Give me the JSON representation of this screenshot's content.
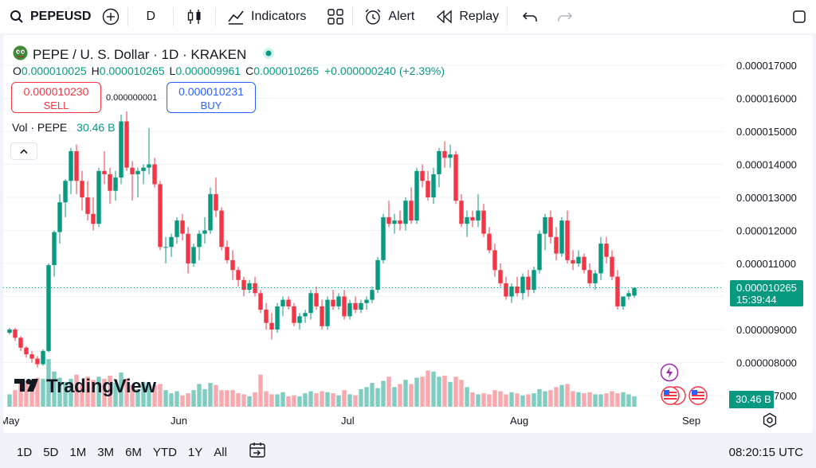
{
  "toolbar": {
    "symbol": "PEPEUSD",
    "interval": "D",
    "indicators_label": "Indicators",
    "alert_label": "Alert",
    "replay_label": "Replay"
  },
  "legend": {
    "title": "PEPE / U. S. Dollar · 1D · KRAKEN",
    "open_key": "O",
    "open": "0.000010025",
    "high_key": "H",
    "high": "0.000010265",
    "low_key": "L",
    "low": "0.000009961",
    "close_key": "C",
    "close": "0.000010265",
    "change": "+0.000000240 (+2.39%)",
    "status_color": "#089981"
  },
  "trade": {
    "sell_price": "0.000010230",
    "sell_label": "SELL",
    "spread": "0.000000001",
    "buy_price": "0.000010231",
    "buy_label": "BUY"
  },
  "volume_legend": {
    "label": "Vol · PEPE",
    "value": "30.46 B"
  },
  "price_axis": {
    "labels": [
      "0.000017000",
      "0.000016000",
      "0.000015000",
      "0.000014000",
      "0.000013000",
      "0.000012000",
      "0.000011000",
      "0.000009000",
      "0.000008000",
      "0.000007000"
    ],
    "last_price": "0.000010265",
    "countdown": "15:39:44",
    "volume_value": "30.46 B"
  },
  "time_axis": {
    "labels": [
      "May",
      "Jun",
      "Jul",
      "Aug",
      "Sep"
    ]
  },
  "branding": {
    "logo_text": "TradingView"
  },
  "bottom_bar": {
    "ranges": [
      "1D",
      "5D",
      "1M",
      "3M",
      "6M",
      "YTD",
      "1Y",
      "All"
    ],
    "clock": "08:20:15 UTC"
  },
  "colors": {
    "up": "#089981",
    "down": "#f23645",
    "up_volume": "#7fccc0",
    "down_volume": "#f7a9ae",
    "accent": "#2962ff"
  },
  "chart_data": {
    "type": "candlestick",
    "timeframe": "1D",
    "ylim": [
      6.6e-06,
      1.77e-05
    ],
    "x_ticks": [
      "May",
      "Jun",
      "Jul",
      "Aug",
      "Sep"
    ],
    "last_close": 1.0265e-05,
    "candles_ohlcv": [
      [
        8.9,
        9.05,
        8.85,
        9.0,
        1.2
      ],
      [
        9.0,
        9.05,
        8.65,
        8.75,
        1.6
      ],
      [
        8.75,
        8.8,
        8.35,
        8.45,
        2.4
      ],
      [
        8.45,
        8.5,
        8.15,
        8.25,
        2.5
      ],
      [
        8.25,
        8.35,
        8.0,
        8.12,
        2.2
      ],
      [
        8.12,
        8.2,
        7.85,
        7.95,
        2.8
      ],
      [
        7.95,
        8.4,
        7.9,
        8.35,
        2.7
      ],
      [
        8.35,
        11.0,
        8.3,
        10.95,
        4.6
      ],
      [
        10.95,
        12.0,
        10.6,
        11.95,
        3.4
      ],
      [
        11.95,
        13.1,
        11.6,
        12.85,
        2.8
      ],
      [
        12.85,
        13.55,
        12.4,
        13.5,
        2.4
      ],
      [
        13.5,
        14.5,
        13.1,
        14.4,
        2.7
      ],
      [
        14.4,
        14.6,
        13.1,
        13.5,
        3.1
      ],
      [
        13.5,
        13.8,
        12.6,
        13.0,
        2.3
      ],
      [
        13.0,
        13.5,
        12.3,
        12.5,
        2.9
      ],
      [
        12.5,
        13.0,
        12.0,
        12.2,
        2.6
      ],
      [
        12.2,
        13.9,
        12.1,
        13.8,
        2.9
      ],
      [
        13.8,
        14.4,
        13.4,
        13.7,
        2.7
      ],
      [
        13.7,
        13.9,
        12.8,
        13.2,
        3.0
      ],
      [
        13.2,
        13.8,
        12.9,
        13.6,
        2.3
      ],
      [
        13.6,
        15.5,
        13.4,
        15.3,
        3.3
      ],
      [
        15.3,
        15.6,
        13.8,
        13.9,
        2.7
      ],
      [
        13.9,
        14.1,
        12.9,
        13.7,
        2.1
      ],
      [
        13.7,
        13.9,
        13.0,
        13.8,
        1.7
      ],
      [
        13.8,
        14.0,
        13.4,
        13.9,
        2.4
      ],
      [
        13.9,
        15.1,
        13.7,
        14.0,
        2.1
      ],
      [
        14.0,
        14.2,
        13.3,
        13.4,
        2.1
      ],
      [
        13.4,
        13.5,
        11.4,
        11.5,
        2.2
      ],
      [
        11.5,
        11.8,
        11.0,
        11.5,
        1.6
      ],
      [
        11.5,
        11.9,
        11.2,
        11.8,
        1.3
      ],
      [
        11.8,
        12.4,
        11.6,
        12.3,
        1.5
      ],
      [
        12.3,
        12.5,
        11.7,
        11.9,
        1.1
      ],
      [
        11.9,
        12.1,
        10.7,
        11.0,
        1.3
      ],
      [
        11.0,
        11.6,
        10.9,
        11.5,
        1.6
      ],
      [
        11.5,
        12.0,
        11.1,
        11.9,
        2.2
      ],
      [
        11.9,
        12.4,
        11.6,
        12.0,
        1.7
      ],
      [
        12.0,
        13.3,
        11.9,
        13.1,
        2.3
      ],
      [
        13.1,
        13.6,
        12.4,
        12.6,
        2.1
      ],
      [
        12.6,
        12.7,
        11.4,
        11.5,
        1.6
      ],
      [
        11.5,
        11.7,
        11.0,
        11.1,
        1.6
      ],
      [
        11.1,
        11.4,
        10.5,
        10.8,
        1.6
      ],
      [
        10.8,
        10.9,
        10.3,
        10.5,
        1.3
      ],
      [
        10.5,
        10.6,
        10.0,
        10.2,
        1.2
      ],
      [
        10.2,
        10.5,
        10.1,
        10.4,
        1.0
      ],
      [
        10.4,
        10.6,
        10.0,
        10.1,
        1.4
      ],
      [
        10.1,
        10.2,
        9.5,
        9.6,
        3.1
      ],
      [
        9.6,
        9.8,
        9.0,
        9.2,
        1.5
      ],
      [
        9.2,
        9.5,
        8.7,
        9.0,
        1.2
      ],
      [
        9.0,
        9.8,
        8.9,
        9.7,
        1.2
      ],
      [
        9.7,
        10.0,
        9.4,
        9.9,
        1.4
      ],
      [
        9.9,
        10.0,
        9.6,
        9.7,
        1.0
      ],
      [
        9.7,
        9.8,
        9.1,
        9.2,
        1.1
      ],
      [
        9.2,
        9.5,
        9.0,
        9.4,
        1.0
      ],
      [
        9.4,
        9.6,
        9.2,
        9.5,
        1.3
      ],
      [
        9.5,
        10.2,
        9.3,
        10.1,
        1.5
      ],
      [
        10.1,
        10.3,
        9.6,
        9.7,
        1.3
      ],
      [
        9.7,
        9.9,
        9.0,
        9.1,
        1.5
      ],
      [
        9.1,
        10.0,
        9.0,
        9.9,
        1.4
      ],
      [
        9.9,
        10.2,
        9.6,
        9.7,
        1.3
      ],
      [
        9.7,
        10.1,
        9.6,
        10.0,
        1.1
      ],
      [
        10.0,
        10.2,
        9.3,
        9.4,
        1.6
      ],
      [
        9.4,
        9.9,
        9.3,
        9.8,
        1.2
      ],
      [
        9.8,
        10.0,
        9.5,
        9.6,
        1.1
      ],
      [
        9.6,
        9.9,
        9.5,
        9.8,
        1.7
      ],
      [
        9.8,
        10.0,
        9.6,
        9.9,
        1.9
      ],
      [
        9.9,
        10.3,
        9.8,
        10.2,
        2.3
      ],
      [
        10.2,
        11.2,
        10.1,
        11.1,
        1.8
      ],
      [
        11.1,
        12.5,
        11.0,
        12.4,
        2.5
      ],
      [
        12.4,
        12.9,
        12.1,
        12.2,
        2.9
      ],
      [
        12.2,
        12.5,
        11.9,
        12.3,
        1.9
      ],
      [
        12.3,
        12.6,
        12.0,
        12.2,
        2.2
      ],
      [
        12.2,
        13.0,
        12.0,
        12.9,
        2.6
      ],
      [
        12.9,
        13.3,
        12.2,
        12.3,
        2.2
      ],
      [
        12.3,
        13.9,
        12.2,
        13.8,
        2.8
      ],
      [
        13.8,
        14.0,
        13.3,
        13.5,
        2.9
      ],
      [
        13.5,
        13.8,
        12.9,
        13.0,
        3.5
      ],
      [
        13.0,
        13.9,
        12.8,
        13.7,
        3.4
      ],
      [
        13.7,
        14.5,
        13.3,
        14.4,
        2.9
      ],
      [
        14.4,
        14.7,
        13.9,
        14.2,
        3.0
      ],
      [
        14.2,
        14.6,
        13.9,
        14.3,
        2.4
      ],
      [
        14.3,
        14.4,
        12.8,
        12.9,
        2.9
      ],
      [
        12.9,
        13.1,
        12.1,
        12.2,
        2.6
      ],
      [
        12.2,
        12.6,
        11.8,
        12.4,
        1.9
      ],
      [
        12.4,
        12.6,
        12.1,
        12.3,
        1.4
      ],
      [
        12.3,
        13.1,
        12.1,
        12.6,
        1.2
      ],
      [
        12.6,
        12.8,
        11.8,
        11.9,
        1.3
      ],
      [
        11.9,
        12.1,
        11.3,
        11.4,
        1.2
      ],
      [
        11.4,
        11.6,
        10.6,
        10.8,
        1.6
      ],
      [
        10.8,
        11.0,
        10.3,
        10.4,
        1.5
      ],
      [
        10.4,
        10.6,
        9.9,
        10.0,
        1.2
      ],
      [
        10.0,
        10.4,
        9.8,
        10.3,
        1.4
      ],
      [
        10.3,
        10.6,
        10.0,
        10.1,
        1.3
      ],
      [
        10.1,
        10.7,
        9.9,
        10.6,
        1.1
      ],
      [
        10.6,
        10.8,
        10.0,
        10.2,
        1.2
      ],
      [
        10.2,
        10.9,
        10.1,
        10.8,
        1.3
      ],
      [
        10.8,
        12.0,
        10.7,
        11.9,
        1.7
      ],
      [
        11.9,
        12.5,
        11.4,
        12.4,
        1.5
      ],
      [
        12.4,
        12.6,
        11.6,
        11.8,
        1.6
      ],
      [
        11.8,
        12.1,
        11.1,
        11.3,
        1.9
      ],
      [
        11.3,
        12.4,
        11.2,
        12.3,
        2.1
      ],
      [
        12.3,
        12.6,
        11.0,
        11.1,
        2.2
      ],
      [
        11.1,
        11.4,
        10.8,
        11.0,
        1.5
      ],
      [
        11.0,
        11.4,
        10.9,
        11.2,
        1.4
      ],
      [
        11.2,
        11.3,
        10.7,
        10.8,
        1.3
      ],
      [
        10.8,
        11.0,
        10.3,
        10.4,
        1.4
      ],
      [
        10.4,
        10.8,
        10.2,
        10.7,
        1.2
      ],
      [
        10.7,
        11.8,
        10.5,
        11.6,
        1.2
      ],
      [
        11.6,
        11.8,
        11.0,
        11.2,
        1.3
      ],
      [
        11.2,
        11.4,
        10.5,
        10.6,
        1.5
      ],
      [
        10.6,
        10.8,
        9.6,
        9.7,
        1.3
      ],
      [
        9.7,
        10.0,
        9.6,
        10.0,
        1.4
      ],
      [
        10.0,
        10.2,
        9.9,
        10.1,
        1.2
      ],
      [
        10.025,
        10.265,
        9.961,
        10.265,
        1.0
      ]
    ]
  }
}
